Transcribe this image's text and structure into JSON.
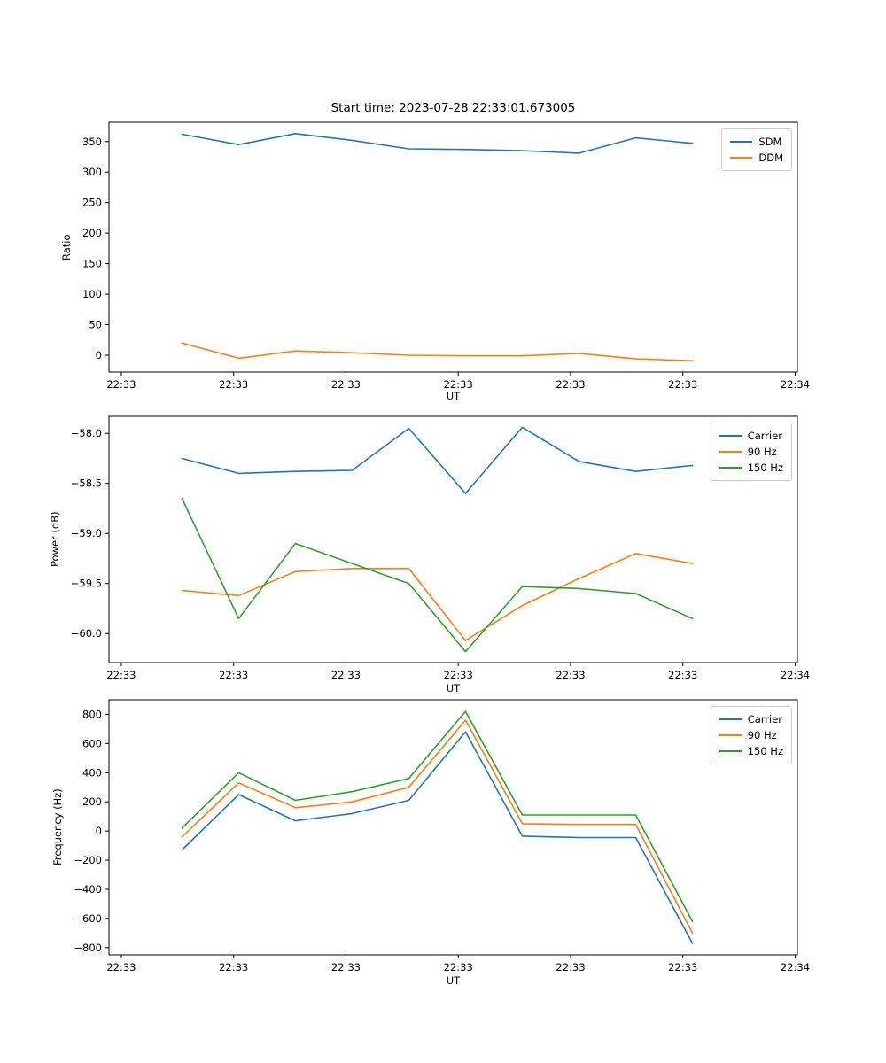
{
  "title": "Start time: 2023-07-28 22:33:01.673005",
  "x_axis": {
    "label": "UT",
    "range": [
      -1.1,
      60.2
    ],
    "tick_values": [
      0,
      10,
      20,
      30,
      40,
      50,
      60
    ],
    "tick_labels": [
      "22:33",
      "22:33",
      "22:33",
      "22:33",
      "22:33",
      "22:33",
      "22:34"
    ]
  },
  "x_values": [
    5.4,
    10.45,
    15.5,
    20.55,
    25.6,
    30.65,
    35.7,
    40.75,
    45.8,
    50.85
  ],
  "chart_data": [
    {
      "type": "line",
      "title": "Start time: 2023-07-28 22:33:01.673005",
      "xlabel": "UT",
      "ylabel": "Ratio",
      "ylim": [
        -27.6,
        381.6
      ],
      "grid": false,
      "legend_position": "upper right",
      "ytick_values": [
        0,
        50,
        100,
        150,
        200,
        250,
        300,
        350
      ],
      "ytick_labels": [
        "0",
        "50",
        "100",
        "150",
        "200",
        "250",
        "300",
        "350"
      ],
      "series": [
        {
          "name": "SDM",
          "color": "#1f77b4",
          "values": [
            362,
            345,
            363,
            352,
            338,
            337,
            335,
            331,
            356,
            347
          ]
        },
        {
          "name": "DDM",
          "color": "#ff7f0e",
          "values": [
            20,
            -5,
            7,
            4,
            0,
            -1,
            -1,
            3,
            -6,
            -9
          ]
        }
      ]
    },
    {
      "type": "line",
      "xlabel": "UT",
      "ylabel": "Power (dB)",
      "ylim": [
        -60.29,
        -57.83
      ],
      "grid": false,
      "legend_position": "upper right",
      "ytick_values": [
        -60.0,
        -59.5,
        -59.0,
        -58.5,
        -58.0
      ],
      "ytick_labels": [
        "−60.0",
        "−59.5",
        "−59.0",
        "−58.5",
        "−58.0"
      ],
      "series": [
        {
          "name": "Carrier",
          "color": "#1f77b4",
          "values": [
            -58.25,
            -58.4,
            -58.38,
            -58.37,
            -57.95,
            -58.6,
            -57.94,
            -58.28,
            -58.38,
            -58.32
          ]
        },
        {
          "name": "90 Hz",
          "color": "#ff7f0e",
          "values": [
            -59.57,
            -59.62,
            -59.38,
            -59.35,
            -59.35,
            -60.07,
            -59.72,
            -59.45,
            -59.2,
            -59.3
          ]
        },
        {
          "name": "150 Hz",
          "color": "#2ca02c",
          "values": [
            -58.65,
            -59.85,
            -59.1,
            -59.3,
            -59.5,
            -60.18,
            -59.53,
            -59.55,
            -59.6,
            -59.85
          ]
        }
      ]
    },
    {
      "type": "line",
      "xlabel": "UT",
      "ylabel": "Frequency (Hz)",
      "ylim": [
        -849.5,
        899.5
      ],
      "grid": false,
      "legend_position": "upper right",
      "ytick_values": [
        -800,
        -600,
        -400,
        -200,
        0,
        200,
        400,
        600,
        800
      ],
      "ytick_labels": [
        "−800",
        "−600",
        "−400",
        "−200",
        "0",
        "200",
        "400",
        "600",
        "800"
      ],
      "series": [
        {
          "name": "Carrier",
          "color": "#1f77b4",
          "values": [
            -130,
            250,
            70,
            120,
            210,
            680,
            -35,
            -45,
            -45,
            -770
          ]
        },
        {
          "name": "90 Hz",
          "color": "#ff7f0e",
          "values": [
            -40,
            330,
            160,
            200,
            300,
            760,
            50,
            45,
            45,
            -700
          ]
        },
        {
          "name": "150 Hz",
          "color": "#2ca02c",
          "values": [
            20,
            400,
            210,
            270,
            360,
            820,
            110,
            110,
            110,
            -620
          ]
        }
      ]
    }
  ]
}
